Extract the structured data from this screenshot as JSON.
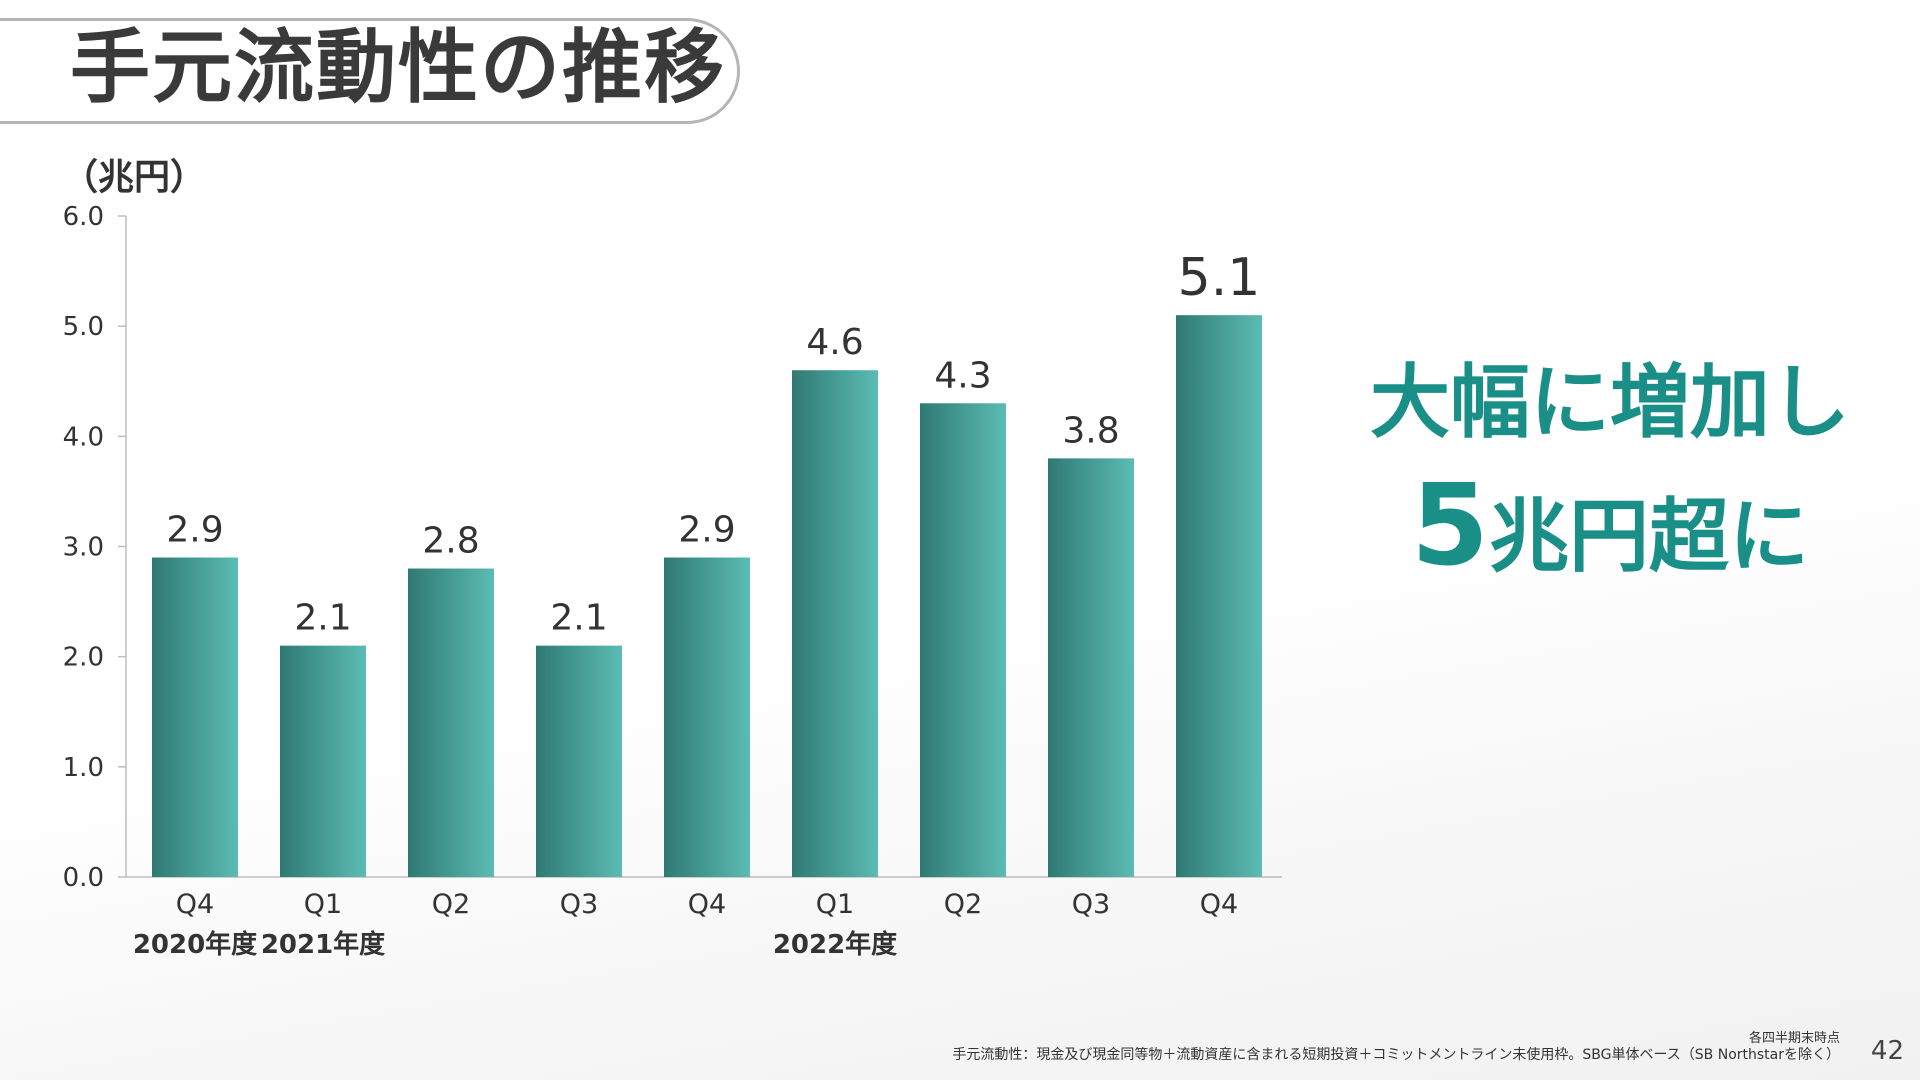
{
  "slide": {
    "title": "手元流動性の推移",
    "highlight_line1": "大幅に増加し",
    "highlight_big": "5",
    "highlight_rest": "兆円超に",
    "footnote_1": "各四半期末時点",
    "footnote_2": "手元流動性：現金及び現金同等物＋流動資産に含まれる短期投資＋コミットメントライン未使用枠。SBG単体ベース（SB Northstarを除く）",
    "page_number": "42",
    "accent_color": "#1a8f88"
  },
  "chart_data": {
    "type": "bar",
    "ylabel": "（兆円）",
    "ylim": [
      0,
      6
    ],
    "yticks": [
      "0.0",
      "1.0",
      "2.0",
      "3.0",
      "4.0",
      "5.0",
      "6.0"
    ],
    "categories": [
      "Q4",
      "Q1",
      "Q2",
      "Q3",
      "Q4",
      "Q1",
      "Q2",
      "Q3",
      "Q4"
    ],
    "values": [
      2.9,
      2.1,
      2.8,
      2.1,
      2.9,
      4.6,
      4.3,
      3.8,
      5.1
    ],
    "value_labels": [
      "2.9",
      "2.1",
      "2.8",
      "2.1",
      "2.9",
      "4.6",
      "4.3",
      "3.8",
      "5.1"
    ],
    "year_groups": [
      {
        "label": "2020年度",
        "index": 0
      },
      {
        "label": "2021年度",
        "index": 1
      },
      {
        "label": "2022年度",
        "index": 5
      }
    ],
    "bar_color_dark": "#2f7a73",
    "bar_color_light": "#5bbcb4",
    "grid": false
  }
}
